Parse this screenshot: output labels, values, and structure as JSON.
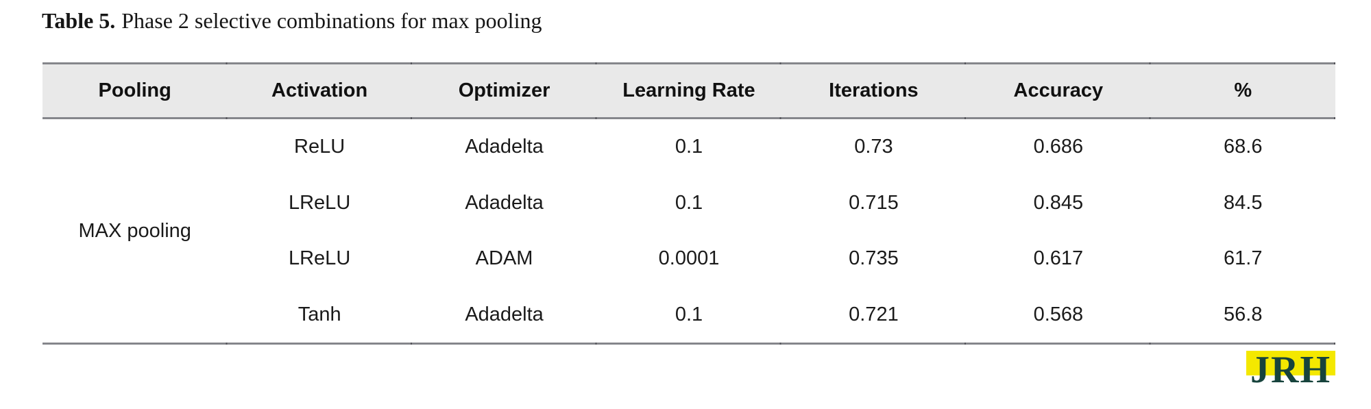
{
  "caption": {
    "label": "Table 5.",
    "text": "Phase 2 selective combinations for max pooling"
  },
  "table": {
    "headers": [
      "Pooling",
      "Activation",
      "Optimizer",
      "Learning Rate",
      "Iterations",
      "Accuracy",
      "%"
    ],
    "pooling_group": "MAX pooling",
    "rows": [
      {
        "activation": "ReLU",
        "optimizer": "Adadelta",
        "learning_rate": "0.1",
        "iterations": "0.73",
        "accuracy": "0.686",
        "percent": "68.6"
      },
      {
        "activation": "LReLU",
        "optimizer": "Adadelta",
        "learning_rate": "0.1",
        "iterations": "0.715",
        "accuracy": "0.845",
        "percent": "84.5"
      },
      {
        "activation": "LReLU",
        "optimizer": "ADAM",
        "learning_rate": "0.0001",
        "iterations": "0.735",
        "accuracy": "0.617",
        "percent": "61.7"
      },
      {
        "activation": "Tanh",
        "optimizer": "Adadelta",
        "learning_rate": "0.1",
        "iterations": "0.721",
        "accuracy": "0.568",
        "percent": "56.8"
      }
    ],
    "style": {
      "header_background": "#e9e9e9",
      "rule_color": "#85868b"
    }
  },
  "logo": {
    "text": "JRH",
    "colors": {
      "dark_green": "#17433c",
      "yellow": "#f4e800"
    }
  }
}
